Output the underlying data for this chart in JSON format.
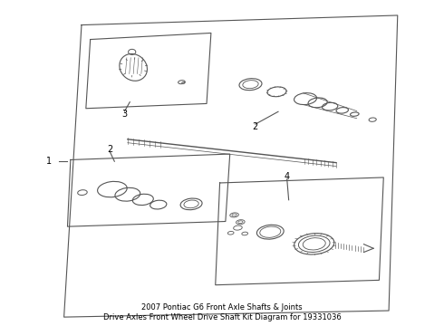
{
  "bg_color": "#ffffff",
  "line_color": "#555555",
  "text_color": "#000000",
  "title": "2007 Pontiac G6 Front Axle Shafts & Joints\nDrive Axles Front Wheel Drive Shaft Kit Diagram for 19331036",
  "title_fontsize": 6,
  "fig_width": 4.9,
  "fig_height": 3.6,
  "dpi": 100
}
